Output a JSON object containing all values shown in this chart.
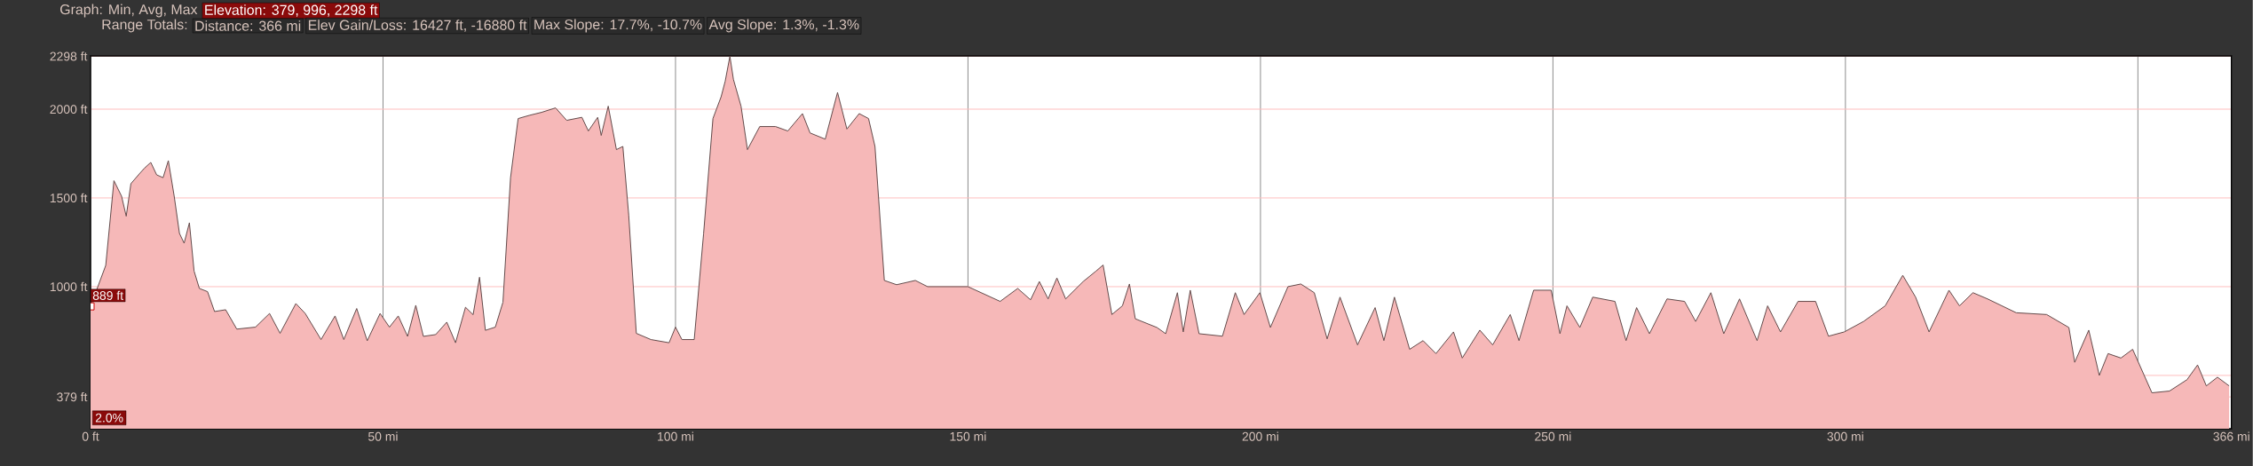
{
  "chart_data": {
    "type": "area",
    "annotations": [
      "Graph: Min, Avg, Max",
      "Elevation: 379, 996, 2298 ft",
      "Range Totals:",
      "Distance: 366 mi",
      "Elev Gain/Loss: 16427 ft, -16880 ft",
      "Max Slope: 17.7%, -10.7%",
      "Avg Slope: 1.3%, -1.3%",
      "2.0%",
      {
        "text": "889 ft",
        "x": 0,
        "y": 889
      }
    ],
    "x": [
      0,
      2.6,
      4.0,
      5.3,
      6.1,
      6.9,
      8.2,
      9.2,
      10.3,
      11.3,
      12.4,
      13.3,
      14.3,
      15.2,
      16.0,
      16.9,
      17.7,
      18.6,
      20.0,
      21.2,
      23.1,
      25,
      28.2,
      30.6,
      32.4,
      35.1,
      36.7,
      39.4,
      41.8,
      43.3,
      45.5,
      47.3,
      49.5,
      51.1,
      52.6,
      54.2,
      55.6,
      56.9,
      59,
      60.9,
      62.4,
      64.1,
      65.4,
      66.5,
      67.5,
      69.2,
      70.5,
      71.8,
      73.1,
      75,
      77.1,
      79.5,
      81.4,
      84.0,
      85.1,
      86.7,
      87.3,
      88.5,
      89.9,
      91.0,
      92.0,
      93.3,
      95.8,
      98.9,
      100,
      101.1,
      103.2,
      104.8,
      106.4,
      107.8,
      108.5,
      109.3,
      109.9,
      111.2,
      112.3,
      114.4,
      117.1,
      119.2,
      121.7,
      123,
      125.6,
      127.7,
      129.3,
      131.4,
      133,
      134.1,
      135.7,
      137.8,
      141,
      143.1,
      150,
      155.5,
      158.5,
      160.7,
      162.2,
      163.7,
      165.2,
      166.7,
      169.7,
      171.9,
      173.1,
      174.6,
      176.4,
      177.6,
      178.6,
      182.3,
      183.8,
      185.8,
      186.8,
      188,
      189.5,
      193.5,
      195.7,
      197.2,
      199.9,
      201.7,
      204.7,
      206.9,
      209.2,
      211.4,
      213.6,
      216.6,
      219.6,
      221.1,
      222.9,
      225.5,
      227.8,
      230,
      233,
      234.5,
      237.5,
      239.7,
      242.7,
      244.2,
      246.7,
      249.7,
      251.2,
      252.4,
      254.6,
      256.8,
      260.6,
      262.5,
      264.3,
      266.5,
      269.5,
      272.5,
      274.4,
      277,
      279.2,
      281.9,
      284.9,
      286.7,
      288.9,
      291.9,
      294.9,
      297.1,
      299.8,
      303.1,
      306.8,
      309.8,
      312,
      314.3,
      317.7,
      319.5,
      321.8,
      324.3,
      329.2,
      334.4,
      338.2,
      339.2,
      341.6,
      343.4,
      344.9,
      347.1,
      349.1,
      352.4,
      355.4,
      358.4,
      360.2,
      361.7,
      363.6,
      365.6
    ],
    "series": [
      {
        "color": "#f6b8b8",
        "values": [
          889,
          1120,
          1597,
          1510,
          1397,
          1580,
          1630,
          1667,
          1700,
          1630,
          1614,
          1710,
          1510,
          1300,
          1245,
          1360,
          1088,
          990,
          972,
          860,
          870,
          761,
          772,
          849,
          737,
          905,
          849,
          702,
          835,
          702,
          877,
          695,
          849,
          772,
          835,
          720,
          895,
          720,
          730,
          800,
          684,
          884,
          842,
          1053,
          754,
          772,
          912,
          1614,
          1947,
          1965,
          1982,
          2007,
          1937,
          1954,
          1877,
          1954,
          1852,
          2017,
          1772,
          1790,
          1404,
          737,
          702,
          684,
          772,
          702,
          702,
          1298,
          1947,
          2070,
          2158,
          2298,
          2168,
          2017,
          1772,
          1902,
          1902,
          1877,
          1975,
          1866,
          1831,
          2094,
          1888,
          1975,
          1947,
          1790,
          1035,
          1011,
          1035,
          1000,
          1000,
          917,
          990,
          926,
          1029,
          931,
          1049,
          931,
          1029,
          1088,
          1122,
          843,
          892,
          1015,
          819,
          770,
          735,
          966,
          745,
          980,
          735,
          721,
          966,
          843,
          966,
          770,
          1000,
          1015,
          966,
          706,
          941,
          672,
          882,
          696,
          941,
          647,
          696,
          623,
          745,
          598,
          755,
          672,
          843,
          696,
          980,
          980,
          735,
          892,
          770,
          941,
          917,
          696,
          882,
          735,
          931,
          917,
          804,
          966,
          735,
          931,
          696,
          892,
          745,
          917,
          917,
          721,
          745,
          804,
          892,
          1064,
          941,
          745,
          980,
          892,
          966,
          931,
          853,
          843,
          770,
          574,
          755,
          500,
          623,
          598,
          647,
          402,
          412,
          476,
          559,
          441,
          490,
          441
        ]
      }
    ],
    "xlim": [
      0,
      366
    ],
    "xticks": [
      {
        "value": 0,
        "label": "0 ft"
      },
      {
        "value": 50,
        "label": "50 mi"
      },
      {
        "value": 100,
        "label": "100 mi"
      },
      {
        "value": 150,
        "label": "150 mi"
      },
      {
        "value": 200,
        "label": "200 mi"
      },
      {
        "value": 250,
        "label": "250 mi"
      },
      {
        "value": 300,
        "label": "300 mi"
      },
      {
        "value": 350,
        "label": null
      },
      {
        "value": 366,
        "label": "366 mi"
      }
    ],
    "ylim": [
      200,
      2300
    ],
    "yticks": [
      {
        "value": 379,
        "label": "379 ft"
      },
      {
        "value": 500,
        "label": null
      },
      {
        "value": 1000,
        "label": "1000 ft"
      },
      {
        "value": 1500,
        "label": "1500 ft"
      },
      {
        "value": 2000,
        "label": "2000 ft"
      },
      {
        "value": 2298,
        "label": "2298 ft"
      }
    ],
    "grid": true
  }
}
